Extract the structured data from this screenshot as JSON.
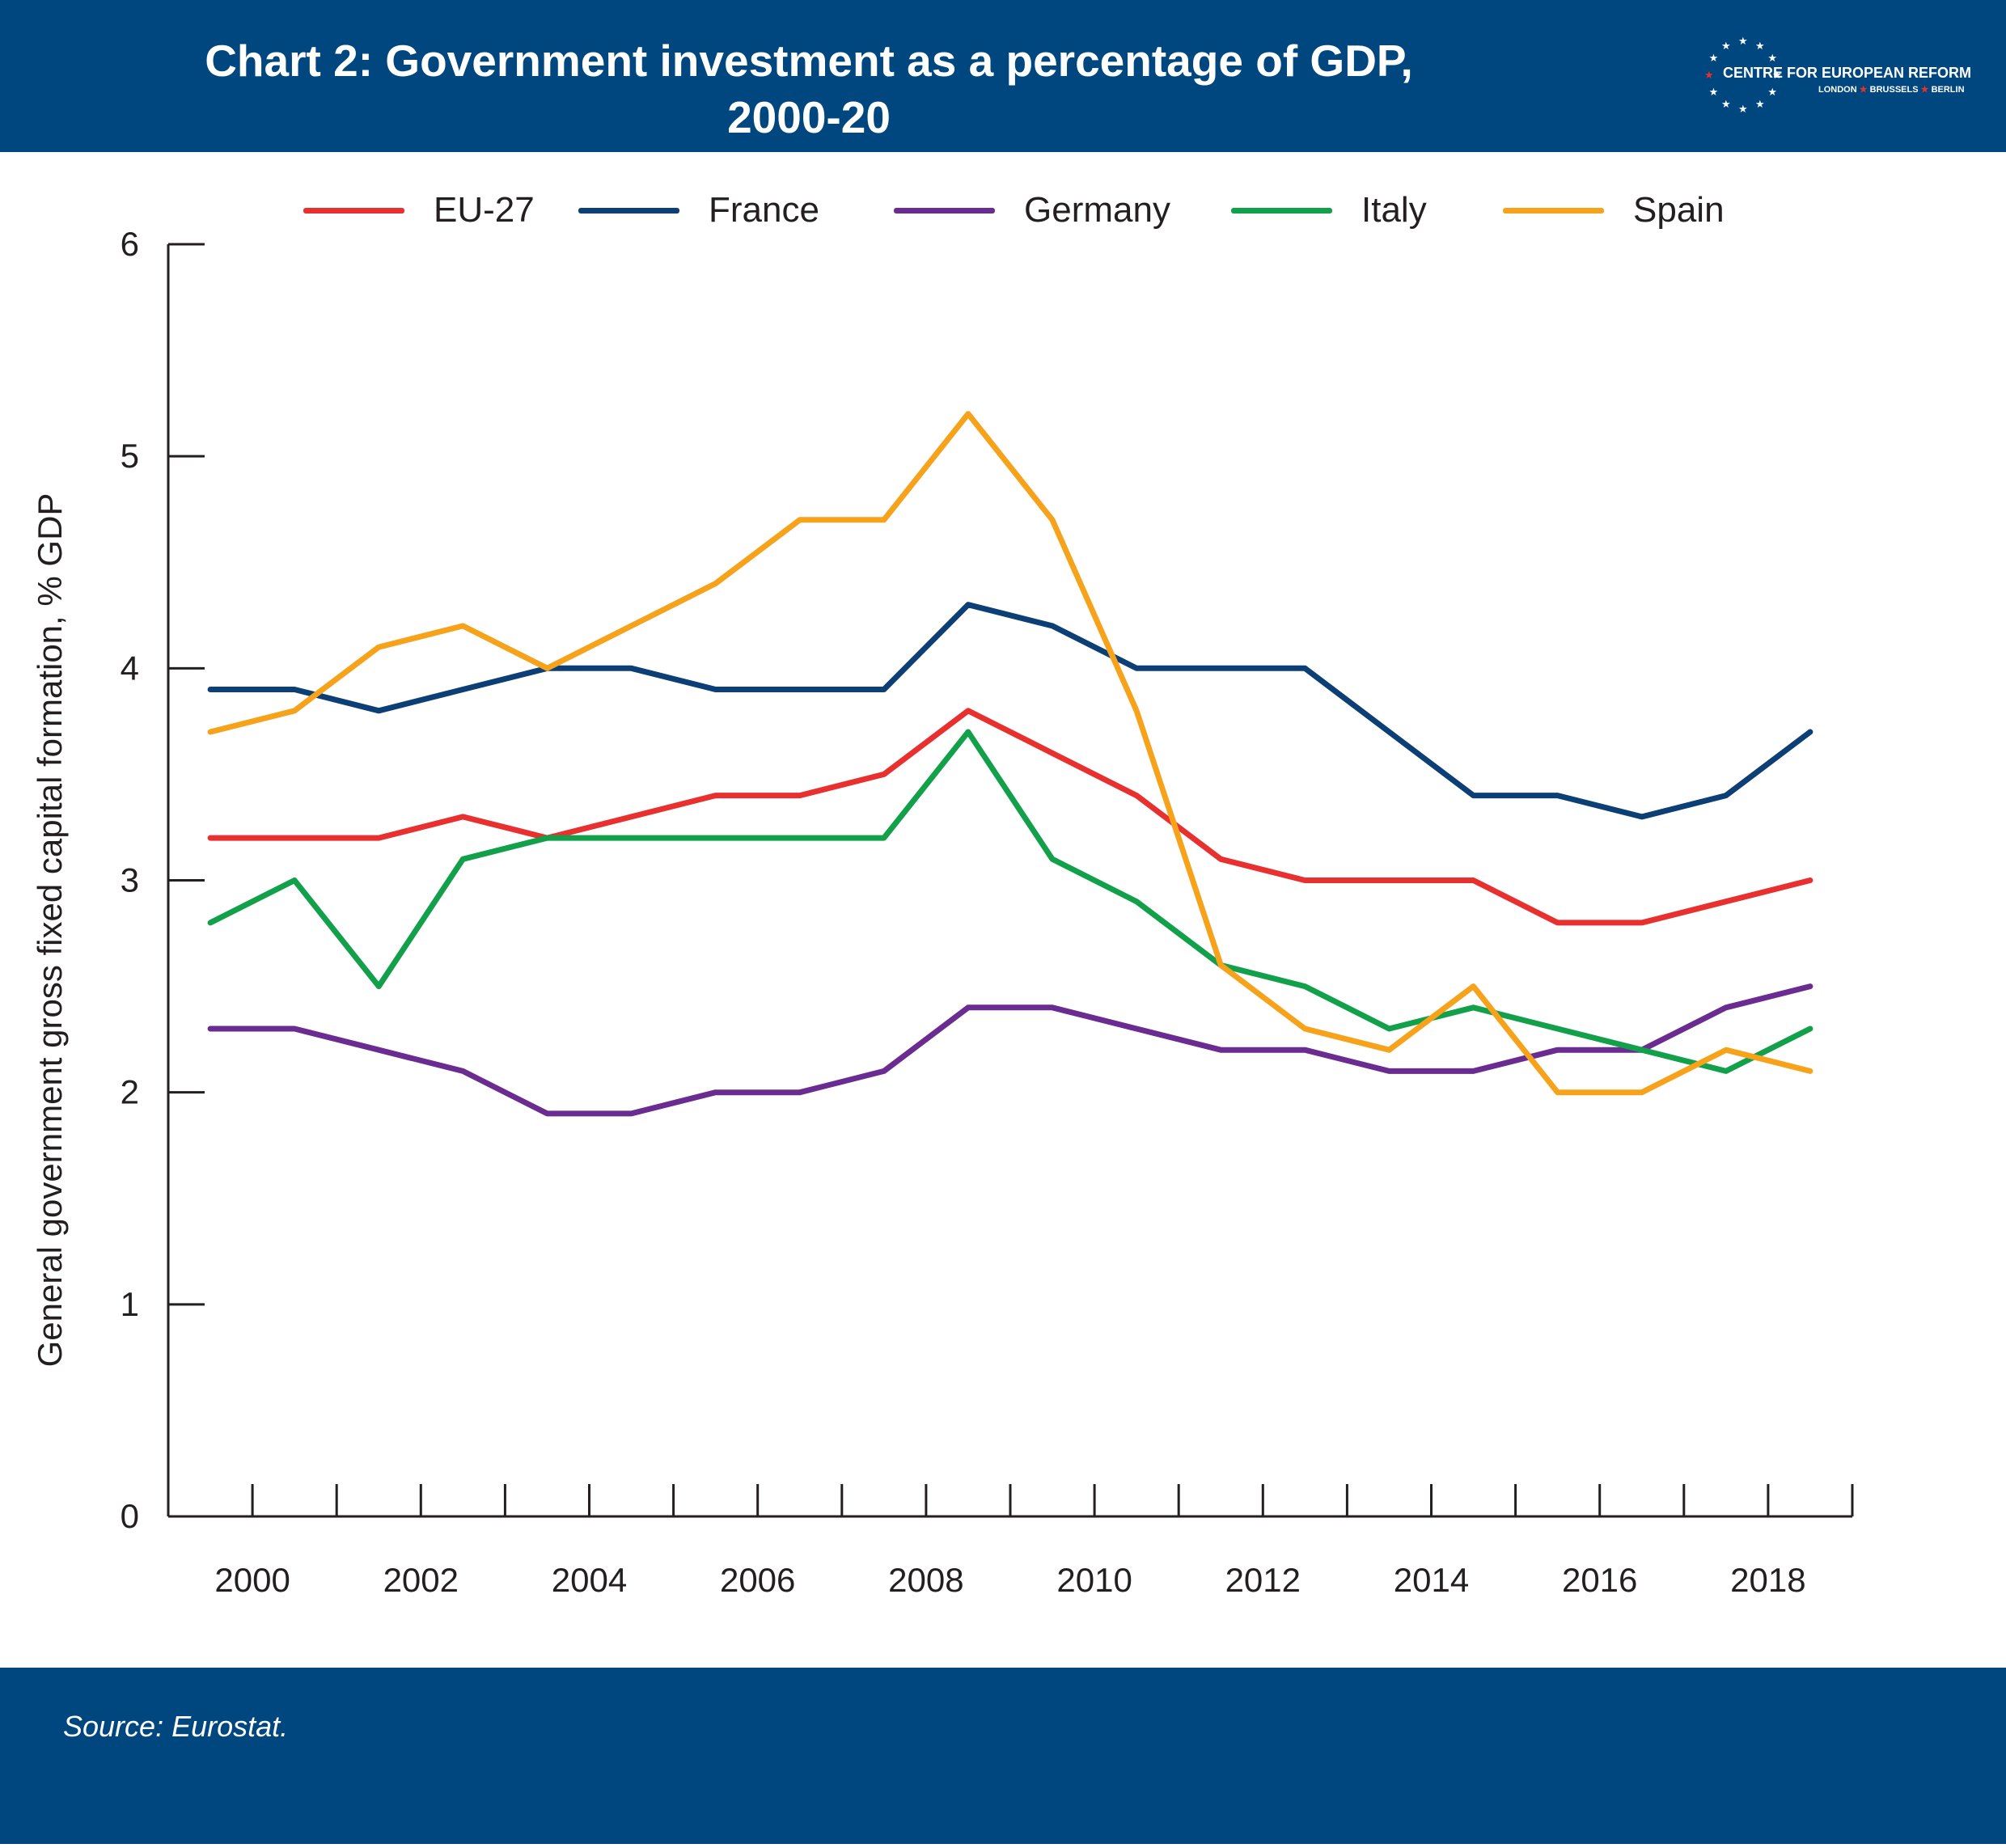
{
  "header": {
    "title_line1": "Chart 2: Government investment as a percentage of GDP,",
    "title_line2": "2000-20"
  },
  "logo": {
    "name": "CENTRE FOR EUROPEAN REFORM",
    "city1": "LONDON",
    "city2": "BRUSSELS",
    "city3": "BERLIN",
    "separator": "★"
  },
  "footer": {
    "source": "Source: Eurostat."
  },
  "colors": {
    "header_bg": "#00467f",
    "eu27": "#e8312f",
    "france": "#0c3f75",
    "germany": "#6b2c91",
    "italy": "#12a04a",
    "spain": "#f7a21b"
  },
  "chart_data": {
    "type": "line",
    "title": "Chart 2: Government investment as a percentage of GDP, 2000-20",
    "xlabel": "",
    "ylabel": "General government gross fixed capital formation, % GDP",
    "x": [
      2000,
      2001,
      2002,
      2003,
      2004,
      2005,
      2006,
      2007,
      2008,
      2009,
      2010,
      2011,
      2012,
      2013,
      2014,
      2015,
      2016,
      2017,
      2018,
      2019
    ],
    "x_tick_labels": [
      "2000",
      "2002",
      "2004",
      "2006",
      "2008",
      "2010",
      "2012",
      "2014",
      "2016",
      "2018"
    ],
    "y_tick_labels": [
      "0",
      "1",
      "2",
      "3",
      "4",
      "5",
      "6"
    ],
    "ylim": [
      0,
      6
    ],
    "legend_position": "top",
    "grid": false,
    "series": [
      {
        "name": "EU-27",
        "color": "#e8312f",
        "values": [
          3.2,
          3.2,
          3.2,
          3.3,
          3.2,
          3.3,
          3.4,
          3.4,
          3.5,
          3.8,
          3.6,
          3.4,
          3.1,
          3.0,
          3.0,
          3.0,
          2.8,
          2.8,
          2.9,
          3.0
        ]
      },
      {
        "name": "France",
        "color": "#0c3f75",
        "values": [
          3.9,
          3.9,
          3.8,
          3.9,
          4.0,
          4.0,
          3.9,
          3.9,
          3.9,
          4.3,
          4.2,
          4.0,
          4.0,
          4.0,
          3.7,
          3.4,
          3.4,
          3.3,
          3.4,
          3.7
        ]
      },
      {
        "name": "Germany",
        "color": "#6b2c91",
        "values": [
          2.3,
          2.3,
          2.2,
          2.1,
          1.9,
          1.9,
          2.0,
          2.0,
          2.1,
          2.4,
          2.4,
          2.3,
          2.2,
          2.2,
          2.1,
          2.1,
          2.2,
          2.2,
          2.4,
          2.5
        ]
      },
      {
        "name": "Italy",
        "color": "#12a04a",
        "values": [
          2.8,
          3.0,
          2.5,
          3.1,
          3.2,
          3.2,
          3.2,
          3.2,
          3.2,
          3.7,
          3.1,
          2.9,
          2.6,
          2.5,
          2.3,
          2.4,
          2.3,
          2.2,
          2.1,
          2.3
        ]
      },
      {
        "name": "Spain",
        "color": "#f7a21b",
        "values": [
          3.7,
          3.8,
          4.1,
          4.2,
          4.0,
          4.2,
          4.4,
          4.7,
          4.7,
          5.2,
          4.7,
          3.8,
          2.6,
          2.3,
          2.2,
          2.5,
          2.0,
          2.0,
          2.2,
          2.1
        ]
      }
    ]
  }
}
